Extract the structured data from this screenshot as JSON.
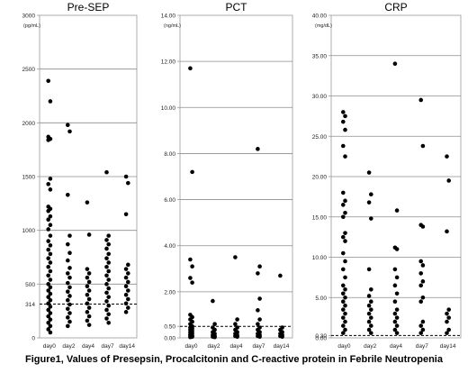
{
  "figure": {
    "caption": "Figure1,   Values of Presepsin, Procalcitonin and C-reactive protein in Febrile Neutropenia"
  },
  "chart_data": [
    {
      "type": "scatter",
      "title": "Pre-SEP",
      "unit": "(pg/mL)",
      "ylim": [
        0,
        3000
      ],
      "yticks": [
        0,
        500,
        1000,
        1500,
        2000,
        2500,
        3000
      ],
      "ytick_labels": [
        "0",
        "500",
        "1000",
        "1500",
        "2000",
        "2500",
        "3000"
      ],
      "categories": [
        "day0",
        "day2",
        "day4",
        "day7",
        "day14"
      ],
      "cutoff": {
        "value": 314,
        "label": "314"
      },
      "grid": true,
      "points": [
        [
          2390,
          2200,
          1870,
          1850,
          1840,
          1480,
          1430,
          1380,
          1220,
          1200,
          1180,
          1130,
          1100,
          1050,
          1010,
          950,
          900,
          860,
          820,
          780,
          740,
          700,
          660,
          620,
          580,
          540,
          500,
          470,
          440,
          410,
          380,
          350,
          320,
          290,
          260,
          230,
          200,
          170,
          140,
          110,
          80,
          50
        ],
        [
          1980,
          1920,
          1330,
          950,
          870,
          790,
          720,
          650,
          600,
          560,
          510,
          470,
          430,
          390,
          350,
          310,
          270,
          230,
          190,
          150,
          110
        ],
        [
          1260,
          960,
          640,
          600,
          560,
          520,
          480,
          440,
          400,
          360,
          320,
          280,
          240,
          200,
          160,
          120
        ],
        [
          1540,
          950,
          910,
          870,
          830,
          780,
          740,
          700,
          660,
          620,
          580,
          540,
          500,
          460,
          420,
          380,
          340,
          300,
          260,
          220,
          180,
          140
        ],
        [
          1500,
          1440,
          1150,
          680,
          640,
          600,
          560,
          520,
          480,
          440,
          400,
          360,
          320,
          280,
          240
        ]
      ]
    },
    {
      "type": "scatter",
      "title": "PCT",
      "unit": "(ng/mL)",
      "ylim": [
        0,
        14
      ],
      "yticks": [
        0,
        0.5,
        2,
        4,
        6,
        8,
        10,
        12,
        14
      ],
      "ytick_labels": [
        "0.00",
        "0.50",
        "2.00",
        "4.00",
        "6.00",
        "8.00",
        "10.00",
        "12.00",
        "14.00"
      ],
      "categories": [
        "day0",
        "day2",
        "day4",
        "day7",
        "day14"
      ],
      "cutoff": {
        "value": 0.5,
        "label": ""
      },
      "grid": true,
      "points": [
        [
          11.7,
          7.2,
          3.4,
          3.1,
          2.6,
          2.4,
          1.0,
          0.9,
          0.8,
          0.7,
          0.6,
          0.5,
          0.45,
          0.4,
          0.35,
          0.3,
          0.25,
          0.2,
          0.15,
          0.1,
          0.08,
          0.05,
          0.03
        ],
        [
          1.6,
          0.6,
          0.45,
          0.35,
          0.25,
          0.18,
          0.12,
          0.08,
          0.05,
          0.03
        ],
        [
          3.5,
          0.8,
          0.6,
          0.45,
          0.35,
          0.25,
          0.18,
          0.12,
          0.08,
          0.05
        ],
        [
          8.2,
          3.1,
          2.8,
          1.7,
          1.2,
          0.8,
          0.6,
          0.45,
          0.35,
          0.25,
          0.18,
          0.12,
          0.08,
          0.05
        ],
        [
          2.7,
          0.45,
          0.35,
          0.25,
          0.18,
          0.12,
          0.08,
          0.05
        ]
      ]
    },
    {
      "type": "scatter",
      "title": "CRP",
      "unit": "(mg/dL)",
      "ylim": [
        0,
        40
      ],
      "yticks": [
        0,
        0.3,
        5,
        10,
        15,
        20,
        25,
        30,
        35,
        40
      ],
      "ytick_labels": [
        "0.00",
        "0.30",
        "5.00",
        "10.00",
        "15.00",
        "20.00",
        "25.00",
        "30.00",
        "35.00",
        "40.00"
      ],
      "categories": [
        "day0",
        "day2",
        "day4",
        "day7",
        "day14"
      ],
      "cutoff": {
        "value": 0.3,
        "label": ""
      },
      "grid": true,
      "points": [
        [
          28.0,
          27.5,
          26.8,
          25.8,
          23.8,
          22.5,
          18.0,
          17.0,
          16.5,
          15.5,
          15.0,
          13.0,
          12.5,
          12.0,
          10.5,
          9.5,
          8.5,
          7.5,
          6.5,
          6.0,
          5.5,
          5.0,
          4.5,
          4.0,
          3.5,
          3.0,
          2.5,
          2.0,
          1.5,
          1.0,
          0.6
        ],
        [
          20.5,
          17.8,
          16.8,
          14.8,
          8.5,
          6.0,
          5.2,
          4.5,
          4.0,
          3.5,
          3.0,
          2.5,
          2.0,
          1.5,
          1.0,
          0.6
        ],
        [
          34.0,
          15.8,
          11.2,
          11.0,
          8.5,
          7.5,
          6.5,
          5.5,
          4.5,
          3.5,
          3.0,
          2.5,
          2.0,
          1.5,
          1.0,
          0.6
        ],
        [
          29.5,
          23.8,
          14.0,
          13.8,
          9.5,
          9.0,
          8.0,
          7.0,
          6.5,
          5.0,
          4.5,
          2.0,
          1.5,
          1.0,
          0.6
        ],
        [
          22.5,
          19.5,
          13.2,
          3.5,
          3.0,
          2.5,
          2.0,
          1.0,
          0.6
        ]
      ]
    }
  ]
}
